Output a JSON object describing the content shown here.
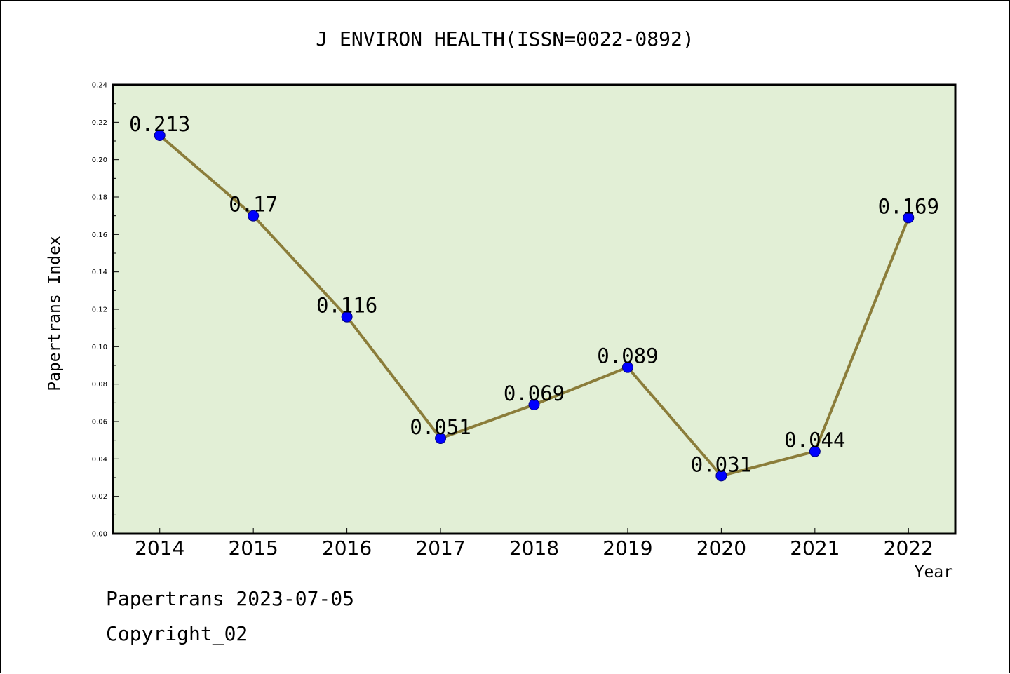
{
  "chart_data": {
    "type": "line",
    "title": "J ENVIRON HEALTH(ISSN=0022-0892)",
    "xlabel": "Year",
    "ylabel": "Papertrans Index",
    "categories": [
      "2014",
      "2015",
      "2016",
      "2017",
      "2018",
      "2019",
      "2020",
      "2021",
      "2022"
    ],
    "values": [
      0.213,
      0.17,
      0.116,
      0.051,
      0.069,
      0.089,
      0.031,
      0.044,
      0.169
    ],
    "data_labels": [
      "0.213",
      "0.17",
      "0.116",
      "0.051",
      "0.069",
      "0.089",
      "0.031",
      "0.044",
      "0.169"
    ],
    "ylim": [
      0,
      0.24
    ],
    "y_ticks": [
      "0.00",
      "0.02",
      "0.04",
      "0.06",
      "0.08",
      "0.10",
      "0.12",
      "0.14",
      "0.16",
      "0.18",
      "0.20",
      "0.22",
      "0.24"
    ],
    "grid": false,
    "colors": {
      "plot_background": "#e2efd6",
      "line": "#8b7d3a",
      "marker": "#0000ff",
      "marker_edge": "#000080"
    }
  },
  "footer": {
    "date_line": "Papertrans 2023-07-05",
    "copyright_line": "Copyright_02"
  }
}
